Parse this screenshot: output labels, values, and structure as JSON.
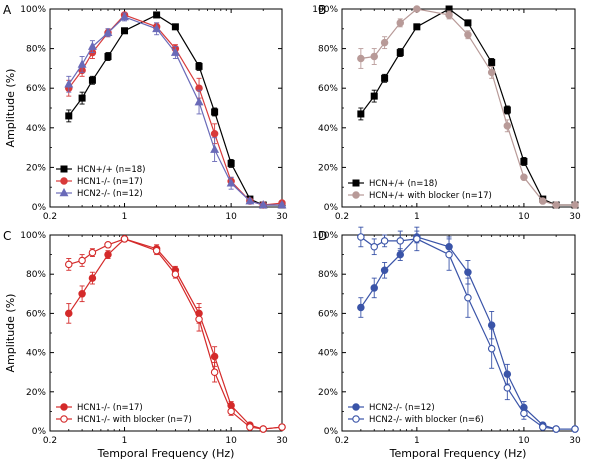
{
  "figure": {
    "x_axis_title": "Temporal Frequency (Hz)",
    "y_axis_title": "Amplitude (%)"
  },
  "chart_data": [
    {
      "type": "line",
      "panel": "A",
      "x_scale": "log",
      "xlim": [
        0.2,
        30
      ],
      "ylim": [
        0,
        100
      ],
      "x_ticks": [
        "0.2",
        "1",
        "10",
        "30"
      ],
      "y_ticks": [
        "0%",
        "20%",
        "40%",
        "60%",
        "80%",
        "100%"
      ],
      "legend_position": "bottom-left",
      "series": [
        {
          "name": "HCN+/+ (n=18)",
          "color": "#000000",
          "marker": "square",
          "fill": "filled",
          "x": [
            0.3,
            0.4,
            0.5,
            0.7,
            1,
            2,
            3,
            5,
            7,
            10,
            15,
            20,
            30
          ],
          "y": [
            46,
            55,
            64,
            76,
            89,
            97,
            91,
            71,
            48,
            22,
            4,
            1,
            1
          ],
          "err": [
            3,
            3,
            2,
            2,
            1,
            1,
            1,
            2,
            2,
            2,
            1,
            1,
            1
          ]
        },
        {
          "name": "HCN1-/- (n=17)",
          "color": "#d83a3a",
          "marker": "circle",
          "fill": "filled",
          "x": [
            0.3,
            0.4,
            0.5,
            0.7,
            1,
            2,
            3,
            5,
            7,
            10,
            15,
            20,
            30
          ],
          "y": [
            60,
            69,
            78,
            88,
            97,
            91,
            80,
            60,
            37,
            13,
            3,
            1,
            2
          ],
          "err": [
            4,
            3,
            3,
            2,
            1,
            2,
            2,
            5,
            5,
            2,
            1,
            1,
            1
          ]
        },
        {
          "name": "HCN2-/- (n=12)",
          "color": "#6a6ab8",
          "marker": "triangle",
          "fill": "filled",
          "x": [
            0.3,
            0.4,
            0.5,
            0.7,
            1,
            2,
            3,
            5,
            7,
            10,
            15,
            20,
            30
          ],
          "y": [
            62,
            72,
            81,
            88,
            96,
            90,
            78,
            53,
            29,
            12,
            3,
            1,
            1
          ],
          "err": [
            4,
            4,
            3,
            2,
            2,
            3,
            3,
            6,
            6,
            3,
            1,
            1,
            1
          ]
        }
      ]
    },
    {
      "type": "line",
      "panel": "B",
      "x_scale": "log",
      "xlim": [
        0.2,
        30
      ],
      "ylim": [
        0,
        100
      ],
      "x_ticks": [
        "0.2",
        "1",
        "10",
        "30"
      ],
      "y_ticks": [
        "0%",
        "20%",
        "40%",
        "60%",
        "80%",
        "100%"
      ],
      "legend_position": "bottom-left",
      "series": [
        {
          "name": "HCN+/+ (n=18)",
          "color": "#000000",
          "marker": "square",
          "fill": "filled",
          "x": [
            0.3,
            0.4,
            0.5,
            0.7,
            1,
            2,
            3,
            5,
            7,
            10,
            15,
            20,
            30
          ],
          "y": [
            47,
            56,
            65,
            78,
            91,
            100,
            93,
            73,
            49,
            23,
            4,
            1,
            1
          ],
          "err": [
            3,
            3,
            2,
            2,
            1,
            1,
            1,
            2,
            2,
            2,
            1,
            1,
            1
          ]
        },
        {
          "name": "HCN+/+ with blocker (n=17)",
          "color": "#b89a98",
          "marker": "circle",
          "fill": "filled",
          "x": [
            0.3,
            0.4,
            0.5,
            0.7,
            1,
            2,
            3,
            5,
            7,
            10,
            15,
            20,
            30
          ],
          "y": [
            75,
            76,
            83,
            93,
            100,
            97,
            87,
            68,
            41,
            15,
            3,
            1,
            1
          ],
          "err": [
            5,
            4,
            3,
            2,
            1,
            2,
            2,
            3,
            3,
            1,
            1,
            1,
            1
          ]
        }
      ]
    },
    {
      "type": "line",
      "panel": "C",
      "x_scale": "log",
      "xlim": [
        0.2,
        30
      ],
      "ylim": [
        0,
        100
      ],
      "x_ticks": [
        "0.2",
        "1",
        "10",
        "30"
      ],
      "y_ticks": [
        "0%",
        "20%",
        "40%",
        "60%",
        "80%",
        "100%"
      ],
      "legend_position": "bottom-left",
      "series": [
        {
          "name": "HCN1-/- (n=17)",
          "color": "#d42a2a",
          "marker": "circle",
          "fill": "filled",
          "x": [
            0.3,
            0.4,
            0.5,
            0.7,
            1,
            2,
            3,
            5,
            7,
            10,
            15,
            20,
            30
          ],
          "y": [
            60,
            70,
            78,
            90,
            98,
            93,
            82,
            60,
            38,
            13,
            3,
            1,
            2
          ],
          "err": [
            5,
            4,
            3,
            2,
            1,
            2,
            2,
            5,
            5,
            2,
            1,
            1,
            1
          ]
        },
        {
          "name": "HCN1-/- with blocker (n=7)",
          "color": "#d42a2a",
          "marker": "circle",
          "fill": "open",
          "x": [
            0.3,
            0.4,
            0.5,
            0.7,
            1,
            2,
            3,
            5,
            7,
            10,
            15,
            20,
            30
          ],
          "y": [
            85,
            87,
            91,
            95,
            98,
            92,
            80,
            57,
            30,
            10,
            2,
            1,
            2
          ],
          "err": [
            3,
            3,
            2,
            1,
            1,
            2,
            2,
            6,
            5,
            2,
            1,
            1,
            1
          ]
        }
      ]
    },
    {
      "type": "line",
      "panel": "D",
      "x_scale": "log",
      "xlim": [
        0.2,
        30
      ],
      "ylim": [
        0,
        100
      ],
      "x_ticks": [
        "0.2",
        "1",
        "10",
        "30"
      ],
      "y_ticks": [
        "0%",
        "20%",
        "40%",
        "60%",
        "80%",
        "100%"
      ],
      "legend_position": "bottom-left",
      "series": [
        {
          "name": "HCN2-/- (n=12)",
          "color": "#3a54a8",
          "marker": "circle",
          "fill": "filled",
          "x": [
            0.3,
            0.4,
            0.5,
            0.7,
            1,
            2,
            3,
            5,
            7,
            10,
            15,
            20,
            30
          ],
          "y": [
            63,
            73,
            82,
            90,
            99,
            94,
            81,
            54,
            29,
            12,
            3,
            1,
            1
          ],
          "err": [
            5,
            5,
            4,
            3,
            3,
            5,
            6,
            7,
            5,
            3,
            1,
            1,
            1
          ]
        },
        {
          "name": "HCN2-/-  with blocker (n=6)",
          "color": "#3a54a8",
          "marker": "circle",
          "fill": "open",
          "x": [
            0.3,
            0.4,
            0.5,
            0.7,
            1,
            2,
            3,
            5,
            7,
            10,
            15,
            20,
            30
          ],
          "y": [
            99,
            94,
            97,
            97,
            98,
            90,
            68,
            42,
            22,
            9,
            2,
            1,
            1
          ],
          "err": [
            5,
            4,
            3,
            5,
            6,
            8,
            10,
            10,
            6,
            3,
            1,
            1,
            1
          ]
        }
      ]
    }
  ]
}
